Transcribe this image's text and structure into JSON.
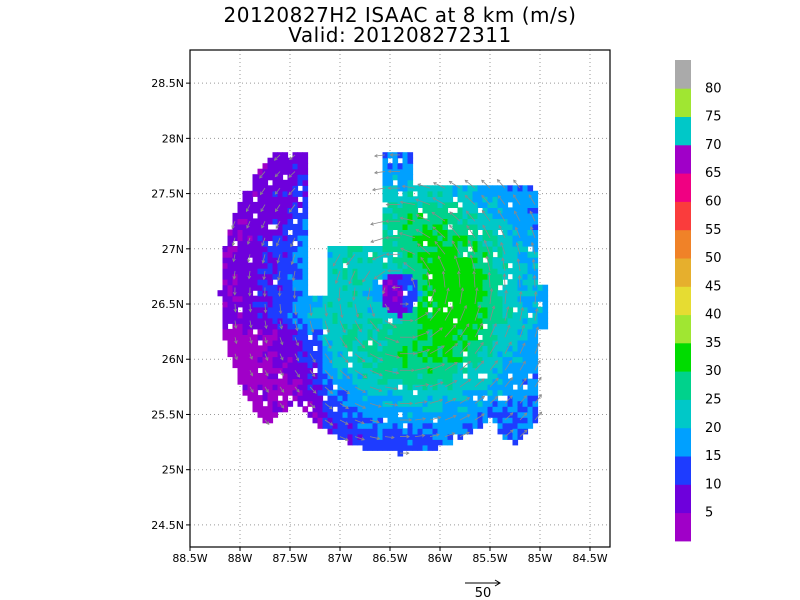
{
  "title": "20120827H2 ISAAC at 8 km (m/s)",
  "subtitle": "Valid: 201208272311",
  "axes": {
    "x_ticks": [
      "88.5W",
      "88W",
      "87.5W",
      "87W",
      "86.5W",
      "86W",
      "85.5W",
      "85W",
      "84.5W"
    ],
    "y_ticks": [
      "28.5N",
      "28N",
      "27.5N",
      "27N",
      "26.5N",
      "26N",
      "25.5N",
      "25N",
      "24.5N"
    ]
  },
  "colorbar": {
    "labels": [
      "5",
      "10",
      "15",
      "20",
      "25",
      "30",
      "35",
      "40",
      "45",
      "50",
      "55",
      "60",
      "65",
      "70",
      "75",
      "80"
    ],
    "colors": [
      "#a000c8",
      "#6e00dc",
      "#1e3cff",
      "#00a0ff",
      "#00c8c8",
      "#00d28c",
      "#00dc00",
      "#a0e632",
      "#e6dc32",
      "#e6af2d",
      "#f08228",
      "#fa3c3c",
      "#f00082",
      "#a000c8",
      "#00c8c8",
      "#a0e632",
      "#aaaaaa"
    ]
  },
  "vector_reference": {
    "label": "50"
  },
  "chart_data": {
    "type": "heatmap",
    "title": "20120827H2 ISAAC at 8 km (m/s)",
    "subtitle": "Valid: 201208272311",
    "x_range": [
      -88.5,
      -84.3
    ],
    "y_range": [
      24.3,
      28.8
    ],
    "grid": true,
    "center": [
      -86.4,
      26.6
    ],
    "inner_radius_deg": 0.2,
    "outer_radius_deg": 1.7,
    "max_wind_ms": 32,
    "colorbar_range": [
      0,
      85
    ]
  }
}
